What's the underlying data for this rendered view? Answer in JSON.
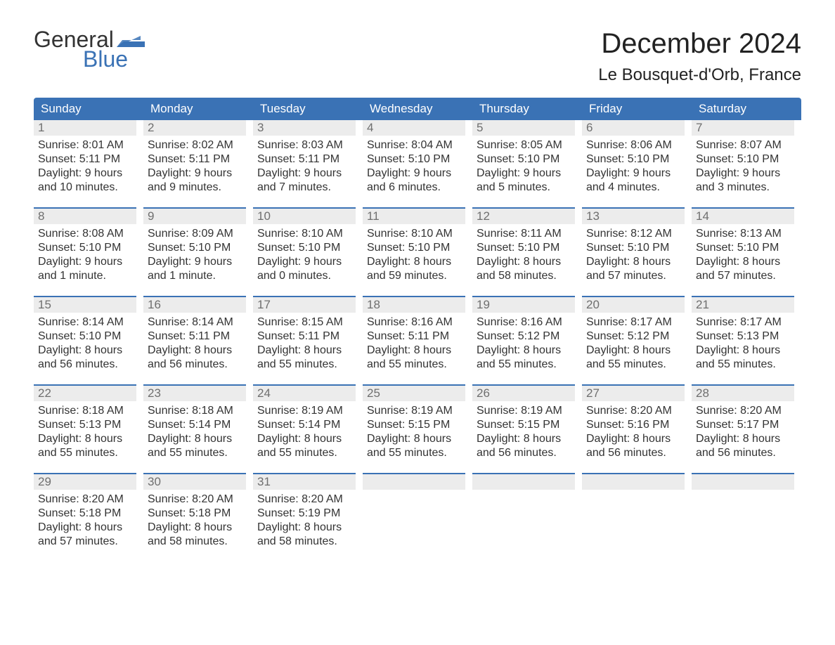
{
  "brand": {
    "word1": "General",
    "word2": "Blue",
    "word2_color": "#3a72b5",
    "icon_color": "#3a72b5"
  },
  "title": {
    "month": "December 2024",
    "location": "Le Bousquet-d'Orb, France"
  },
  "colors": {
    "header_bg": "#3a72b5",
    "header_text": "#ffffff",
    "daynum_bg": "#ececec",
    "daynum_text": "#6f6f6f",
    "week_border": "#3a72b5",
    "body_text": "#333333"
  },
  "day_labels": [
    "Sunday",
    "Monday",
    "Tuesday",
    "Wednesday",
    "Thursday",
    "Friday",
    "Saturday"
  ],
  "weeks": [
    [
      {
        "n": "1",
        "sunrise": "8:01 AM",
        "sunset": "5:11 PM",
        "dl1": "9 hours",
        "dl2": "and 10 minutes."
      },
      {
        "n": "2",
        "sunrise": "8:02 AM",
        "sunset": "5:11 PM",
        "dl1": "9 hours",
        "dl2": "and 9 minutes."
      },
      {
        "n": "3",
        "sunrise": "8:03 AM",
        "sunset": "5:11 PM",
        "dl1": "9 hours",
        "dl2": "and 7 minutes."
      },
      {
        "n": "4",
        "sunrise": "8:04 AM",
        "sunset": "5:10 PM",
        "dl1": "9 hours",
        "dl2": "and 6 minutes."
      },
      {
        "n": "5",
        "sunrise": "8:05 AM",
        "sunset": "5:10 PM",
        "dl1": "9 hours",
        "dl2": "and 5 minutes."
      },
      {
        "n": "6",
        "sunrise": "8:06 AM",
        "sunset": "5:10 PM",
        "dl1": "9 hours",
        "dl2": "and 4 minutes."
      },
      {
        "n": "7",
        "sunrise": "8:07 AM",
        "sunset": "5:10 PM",
        "dl1": "9 hours",
        "dl2": "and 3 minutes."
      }
    ],
    [
      {
        "n": "8",
        "sunrise": "8:08 AM",
        "sunset": "5:10 PM",
        "dl1": "9 hours",
        "dl2": "and 1 minute."
      },
      {
        "n": "9",
        "sunrise": "8:09 AM",
        "sunset": "5:10 PM",
        "dl1": "9 hours",
        "dl2": "and 1 minute."
      },
      {
        "n": "10",
        "sunrise": "8:10 AM",
        "sunset": "5:10 PM",
        "dl1": "9 hours",
        "dl2": "and 0 minutes."
      },
      {
        "n": "11",
        "sunrise": "8:10 AM",
        "sunset": "5:10 PM",
        "dl1": "8 hours",
        "dl2": "and 59 minutes."
      },
      {
        "n": "12",
        "sunrise": "8:11 AM",
        "sunset": "5:10 PM",
        "dl1": "8 hours",
        "dl2": "and 58 minutes."
      },
      {
        "n": "13",
        "sunrise": "8:12 AM",
        "sunset": "5:10 PM",
        "dl1": "8 hours",
        "dl2": "and 57 minutes."
      },
      {
        "n": "14",
        "sunrise": "8:13 AM",
        "sunset": "5:10 PM",
        "dl1": "8 hours",
        "dl2": "and 57 minutes."
      }
    ],
    [
      {
        "n": "15",
        "sunrise": "8:14 AM",
        "sunset": "5:10 PM",
        "dl1": "8 hours",
        "dl2": "and 56 minutes."
      },
      {
        "n": "16",
        "sunrise": "8:14 AM",
        "sunset": "5:11 PM",
        "dl1": "8 hours",
        "dl2": "and 56 minutes."
      },
      {
        "n": "17",
        "sunrise": "8:15 AM",
        "sunset": "5:11 PM",
        "dl1": "8 hours",
        "dl2": "and 55 minutes."
      },
      {
        "n": "18",
        "sunrise": "8:16 AM",
        "sunset": "5:11 PM",
        "dl1": "8 hours",
        "dl2": "and 55 minutes."
      },
      {
        "n": "19",
        "sunrise": "8:16 AM",
        "sunset": "5:12 PM",
        "dl1": "8 hours",
        "dl2": "and 55 minutes."
      },
      {
        "n": "20",
        "sunrise": "8:17 AM",
        "sunset": "5:12 PM",
        "dl1": "8 hours",
        "dl2": "and 55 minutes."
      },
      {
        "n": "21",
        "sunrise": "8:17 AM",
        "sunset": "5:13 PM",
        "dl1": "8 hours",
        "dl2": "and 55 minutes."
      }
    ],
    [
      {
        "n": "22",
        "sunrise": "8:18 AM",
        "sunset": "5:13 PM",
        "dl1": "8 hours",
        "dl2": "and 55 minutes."
      },
      {
        "n": "23",
        "sunrise": "8:18 AM",
        "sunset": "5:14 PM",
        "dl1": "8 hours",
        "dl2": "and 55 minutes."
      },
      {
        "n": "24",
        "sunrise": "8:19 AM",
        "sunset": "5:14 PM",
        "dl1": "8 hours",
        "dl2": "and 55 minutes."
      },
      {
        "n": "25",
        "sunrise": "8:19 AM",
        "sunset": "5:15 PM",
        "dl1": "8 hours",
        "dl2": "and 55 minutes."
      },
      {
        "n": "26",
        "sunrise": "8:19 AM",
        "sunset": "5:15 PM",
        "dl1": "8 hours",
        "dl2": "and 56 minutes."
      },
      {
        "n": "27",
        "sunrise": "8:20 AM",
        "sunset": "5:16 PM",
        "dl1": "8 hours",
        "dl2": "and 56 minutes."
      },
      {
        "n": "28",
        "sunrise": "8:20 AM",
        "sunset": "5:17 PM",
        "dl1": "8 hours",
        "dl2": "and 56 minutes."
      }
    ],
    [
      {
        "n": "29",
        "sunrise": "8:20 AM",
        "sunset": "5:18 PM",
        "dl1": "8 hours",
        "dl2": "and 57 minutes."
      },
      {
        "n": "30",
        "sunrise": "8:20 AM",
        "sunset": "5:18 PM",
        "dl1": "8 hours",
        "dl2": "and 58 minutes."
      },
      {
        "n": "31",
        "sunrise": "8:20 AM",
        "sunset": "5:19 PM",
        "dl1": "8 hours",
        "dl2": "and 58 minutes."
      },
      null,
      null,
      null,
      null
    ]
  ],
  "labels": {
    "sunrise_prefix": "Sunrise: ",
    "sunset_prefix": "Sunset: ",
    "daylight_prefix": "Daylight: "
  }
}
